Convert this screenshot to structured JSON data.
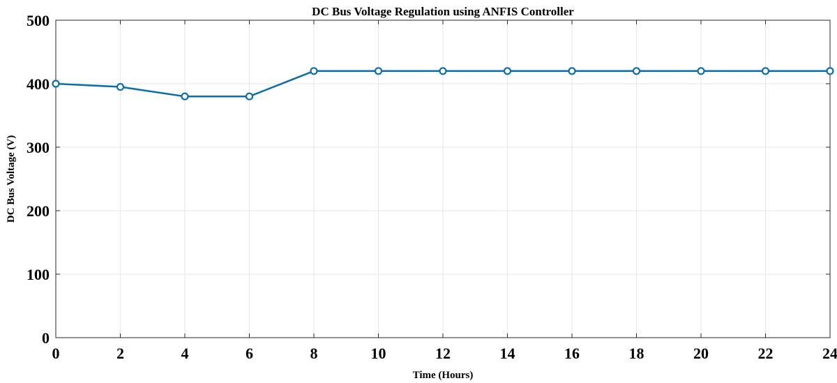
{
  "chart_data": {
    "type": "line",
    "title": "DC Bus Voltage Regulation using ANFIS Controller",
    "xlabel": "Time (Hours)",
    "ylabel": "DC Bus Voltage (V)",
    "xlim": [
      0,
      24
    ],
    "ylim": [
      0,
      500
    ],
    "xticks": [
      0,
      2,
      4,
      6,
      8,
      10,
      12,
      14,
      16,
      18,
      20,
      22,
      24
    ],
    "yticks": [
      0,
      100,
      200,
      300,
      400,
      500
    ],
    "grid": true,
    "series": [
      {
        "color": "#0b6ea8",
        "marker": "circle",
        "x": [
          0,
          2,
          4,
          6,
          8,
          10,
          12,
          14,
          16,
          18,
          20,
          22,
          24
        ],
        "y": [
          400,
          395,
          380,
          380,
          420,
          420,
          420,
          420,
          420,
          420,
          420,
          420,
          420
        ]
      }
    ]
  }
}
